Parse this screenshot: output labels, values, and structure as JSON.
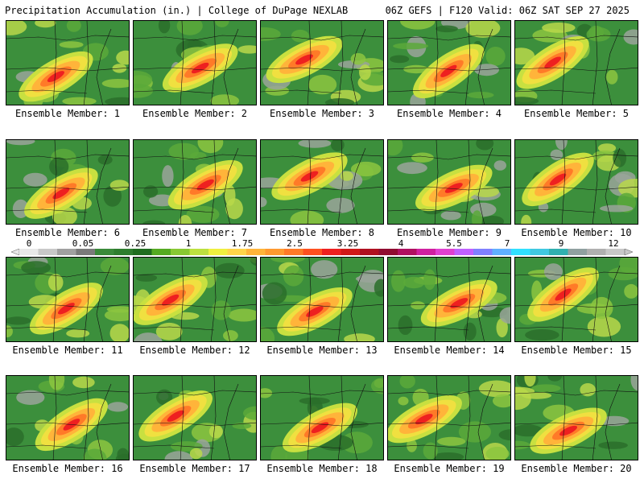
{
  "header": {
    "left_title": "Precipitation Accumulation (in.) | College of DuPage NEXLAB",
    "right_title": "06Z GEFS | F120 Valid: 06Z SAT SEP 27 2025"
  },
  "colorbar": {
    "tick_labels": [
      "0",
      "0.05",
      "0.25",
      "1",
      "1.75",
      "2.5",
      "3.25",
      "4",
      "5.5",
      "7",
      "9",
      "12"
    ],
    "colors": [
      "#e8e8e8",
      "#c8c8c8",
      "#a0a0a0",
      "#7a7a7a",
      "#3a8a3a",
      "#2e7d2e",
      "#1f6d1f",
      "#55aa22",
      "#88c833",
      "#bde040",
      "#f0f040",
      "#ffd54a",
      "#ffb43a",
      "#ff9a30",
      "#ff7a28",
      "#ff5020",
      "#ee2020",
      "#d01818",
      "#b01020",
      "#900c30",
      "#b01060",
      "#d020a0",
      "#e040d0",
      "#c060ff",
      "#8080ff",
      "#60b0ff",
      "#30e0ff",
      "#40c8e0",
      "#30b0b0",
      "#90a0a0",
      "#b0b0b0",
      "#c8c8c8"
    ]
  },
  "members": [
    {
      "label": "Ensemble Member: 1"
    },
    {
      "label": "Ensemble Member: 2"
    },
    {
      "label": "Ensemble Member: 3"
    },
    {
      "label": "Ensemble Member: 4"
    },
    {
      "label": "Ensemble Member: 5"
    },
    {
      "label": "Ensemble Member: 6"
    },
    {
      "label": "Ensemble Member: 7"
    },
    {
      "label": "Ensemble Member: 8"
    },
    {
      "label": "Ensemble Member: 9"
    },
    {
      "label": "Ensemble Member: 10"
    },
    {
      "label": "Ensemble Member: 11"
    },
    {
      "label": "Ensemble Member: 12"
    },
    {
      "label": "Ensemble Member: 13"
    },
    {
      "label": "Ensemble Member: 14"
    },
    {
      "label": "Ensemble Member: 15"
    },
    {
      "label": "Ensemble Member: 16"
    },
    {
      "label": "Ensemble Member: 17"
    },
    {
      "label": "Ensemble Member: 18"
    },
    {
      "label": "Ensemble Member: 19"
    },
    {
      "label": "Ensemble Member: 20"
    }
  ]
}
